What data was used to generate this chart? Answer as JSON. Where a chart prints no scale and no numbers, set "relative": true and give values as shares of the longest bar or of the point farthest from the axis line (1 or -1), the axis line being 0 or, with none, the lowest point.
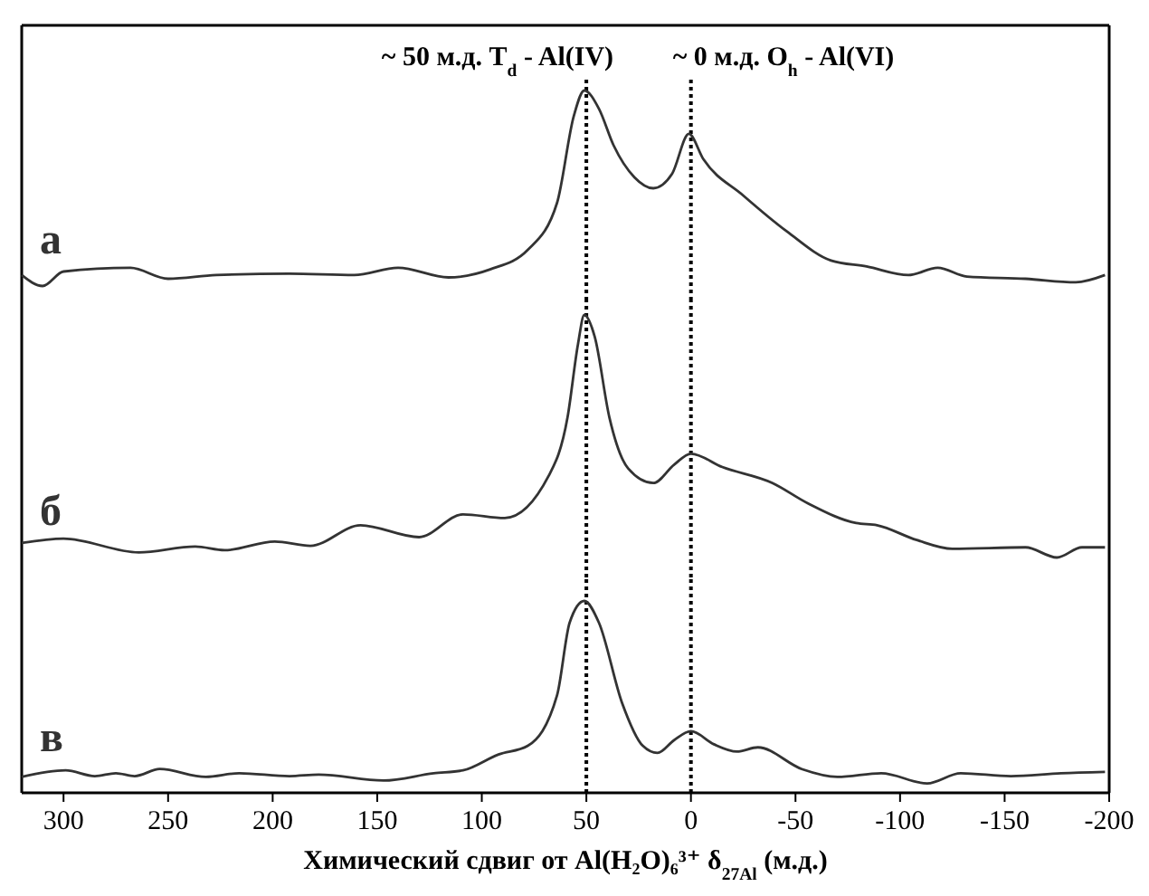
{
  "chart_data": [
    {
      "type": "line",
      "relative": true,
      "xlim": [
        320,
        -200
      ],
      "tick_labels": false,
      "x": [
        320,
        310,
        300,
        268,
        250,
        227,
        192,
        161,
        140,
        116,
        96,
        78,
        64,
        56,
        51,
        44,
        37,
        27,
        18,
        9,
        1,
        -6,
        -25,
        -46,
        -67,
        -84,
        -104,
        -118,
        -132,
        -160,
        -184,
        -198
      ],
      "series": [
        {
          "name": "а",
          "color": "#333333",
          "values": [
            0.056,
            0,
            0.074,
            0.093,
            0.037,
            0.056,
            0.063,
            0.056,
            0.093,
            0.044,
            0.085,
            0.185,
            0.426,
            0.87,
            1,
            0.907,
            0.72,
            0.556,
            0.5,
            0.574,
            0.778,
            0.648,
            0.463,
            0.278,
            0.13,
            0.1,
            0.056,
            0.093,
            0.048,
            0.037,
            0.019,
            0.056
          ]
        }
      ],
      "ref_lines": [
        {
          "axis": "x",
          "value": 50,
          "label": "~ 50 м.д. T$_{d}$ - Al(IV)",
          "line_style": "dotted",
          "color": "#000000"
        },
        {
          "axis": "x",
          "value": 0,
          "label": "~ 0 м.д. O$_{h}$ - Al(VI)",
          "line_style": "dotted",
          "color": "#000000"
        }
      ]
    },
    {
      "type": "line",
      "relative": true,
      "xlim": [
        320,
        -200
      ],
      "tick_labels": false,
      "x": [
        320,
        300,
        264,
        237,
        223,
        199,
        182,
        158,
        130,
        109,
        89,
        68,
        59,
        54,
        51,
        46,
        39,
        30,
        18,
        8,
        0,
        -15,
        -39,
        -56,
        -79,
        -89,
        -108,
        -125,
        -160,
        -175,
        -187,
        -198
      ],
      "series": [
        {
          "name": "б",
          "color": "#333333",
          "values": [
            0.06,
            0.078,
            0.021,
            0.045,
            0.03,
            0.066,
            0.048,
            0.133,
            0.084,
            0.178,
            0.163,
            0.337,
            0.578,
            0.88,
            1,
            0.91,
            0.578,
            0.367,
            0.307,
            0.383,
            0.428,
            0.373,
            0.307,
            0.223,
            0.142,
            0.133,
            0.072,
            0.036,
            0.042,
            0,
            0.042,
            0.042
          ]
        }
      ],
      "ref_lines": [
        {
          "axis": "x",
          "value": 50,
          "line_style": "dotted",
          "color": "#000000"
        },
        {
          "axis": "x",
          "value": 0,
          "line_style": "dotted",
          "color": "#000000"
        }
      ]
    },
    {
      "type": "line",
      "relative": true,
      "xlim": [
        320,
        -200
      ],
      "xticks": [
        300,
        250,
        200,
        150,
        100,
        50,
        0,
        -50,
        -100,
        -150,
        -200
      ],
      "tick_labels": "x",
      "xlabel": "Химический сдвиг от Al(H₂O)₆³⁺ δ$_{27Al}$ (м.д.)",
      "x": [
        320,
        299,
        285,
        275,
        266,
        254,
        232,
        216,
        192,
        178,
        147,
        123,
        109,
        92,
        78,
        64,
        58,
        51,
        44,
        33,
        23,
        16,
        8,
        0,
        -11,
        -22,
        -32,
        -53,
        -70,
        -91,
        -113,
        -129,
        -153,
        -177,
        -198
      ],
      "series": [
        {
          "name": "в",
          "color": "#333333",
          "values": [
            0.083,
            0.117,
            0.087,
            0.102,
            0.087,
            0.124,
            0.083,
            0.102,
            0.087,
            0.095,
            0.064,
            0.102,
            0.117,
            0.2,
            0.245,
            0.509,
            0.887,
            1,
            0.887,
            0.471,
            0.245,
            0.208,
            0.275,
            0.321,
            0.253,
            0.215,
            0.237,
            0.124,
            0.083,
            0.102,
            0.049,
            0.102,
            0.087,
            0.102,
            0.109
          ]
        }
      ],
      "ref_lines": [
        {
          "axis": "x",
          "value": 50,
          "line_style": "dotted",
          "color": "#000000"
        },
        {
          "axis": "x",
          "value": 0,
          "line_style": "dotted",
          "color": "#000000"
        }
      ]
    }
  ]
}
